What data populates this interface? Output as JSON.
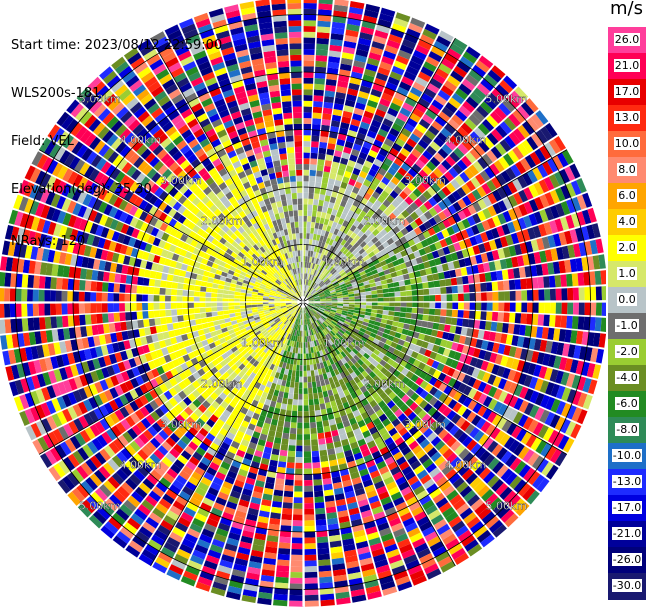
{
  "info": {
    "start_time": "Start time: 2023/08/12 22:59:00",
    "site": "WLS200s-181",
    "field": "Field: VEL",
    "elevation": "Elevation(deg): 35.30",
    "nrays": "NRays: 120"
  },
  "colorbar": {
    "unit": "m/s",
    "ticks": [
      "26.0",
      "21.0",
      "17.0",
      "13.0",
      "10.0",
      "8.0",
      "6.0",
      "4.0",
      "2.0",
      "1.0",
      "0.0",
      "-1.0",
      "-2.0",
      "-4.0",
      "-6.0",
      "-8.0",
      "-10.0",
      "-13.0",
      "-17.0",
      "-21.0",
      "-26.0",
      "-30.0"
    ],
    "colors": [
      "#ff3e9b",
      "#ff0055",
      "#e80000",
      "#ff2a10",
      "#ff6b3c",
      "#ff8a70",
      "#ffa500",
      "#ffcc00",
      "#ffff00",
      "#d6e86a",
      "#b8c4c8",
      "#6e6e6e",
      "#9acd32",
      "#6b8e23",
      "#228b22",
      "#2e8b57",
      "#1e6fc8",
      "#1e2bff",
      "#0000e0",
      "#00009a",
      "#00007a",
      "#191970"
    ]
  },
  "chart_data": {
    "type": "ppi",
    "title": "",
    "field": "VEL",
    "units": "m/s",
    "nrays": 120,
    "elevation_deg": 35.3,
    "range_ring_labels": [
      "1.00km",
      "2.00km",
      "3.00km",
      "4.00km",
      "5.00km"
    ],
    "range_rings_km": [
      1,
      2,
      3,
      4,
      5
    ],
    "max_range_km": 5.3,
    "scale_levels": [
      26.0,
      21.0,
      17.0,
      13.0,
      10.0,
      8.0,
      6.0,
      4.0,
      2.0,
      1.0,
      0.0,
      -1.0,
      -2.0,
      -4.0,
      -6.0,
      -8.0,
      -10.0,
      -13.0,
      -17.0,
      -21.0,
      -26.0,
      -30.0
    ],
    "sectors": [
      {
        "az_from": 200,
        "az_to": 340,
        "inner_km_to": 2.8,
        "value_range": [
          1.0,
          4.0
        ],
        "description_color": "yellow"
      },
      {
        "az_from": 340,
        "az_to": 60,
        "inner_km_to": 2.4,
        "value_range": [
          -2.0,
          2.0
        ],
        "description_color": "grey-green"
      },
      {
        "az_from": 60,
        "az_to": 200,
        "inner_km_to": 2.6,
        "value_range": [
          -6.0,
          -1.0
        ],
        "description_color": "green"
      }
    ]
  }
}
